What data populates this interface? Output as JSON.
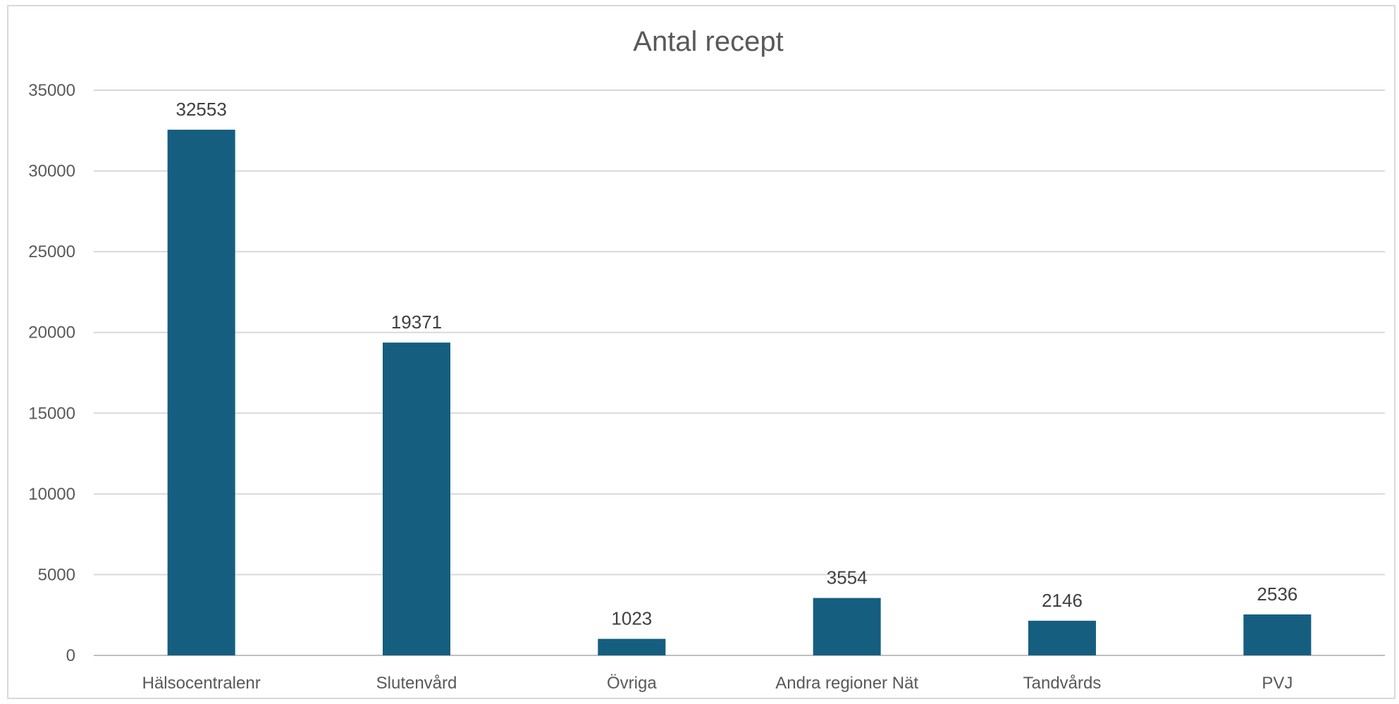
{
  "chart_data": {
    "type": "bar",
    "title": "Antal recept",
    "xlabel": "",
    "ylabel": "",
    "categories": [
      "Hälsocentralenr",
      "Slutenvård",
      "Övriga",
      "Andra regioner Nät",
      "Tandvårds",
      "PVJ"
    ],
    "values": [
      32553,
      19371,
      1023,
      3554,
      2146,
      2536
    ],
    "data_labels": [
      "32553",
      "19371",
      "1023",
      "3554",
      "2146",
      "2536"
    ],
    "ylim": [
      0,
      35000
    ],
    "yticks": [
      0,
      5000,
      10000,
      15000,
      20000,
      25000,
      30000,
      35000
    ],
    "ytick_labels": [
      "0",
      "5000",
      "10000",
      "15000",
      "20000",
      "25000",
      "30000",
      "35000"
    ],
    "grid": true,
    "legend": "none",
    "bar_color": "#155E80"
  }
}
